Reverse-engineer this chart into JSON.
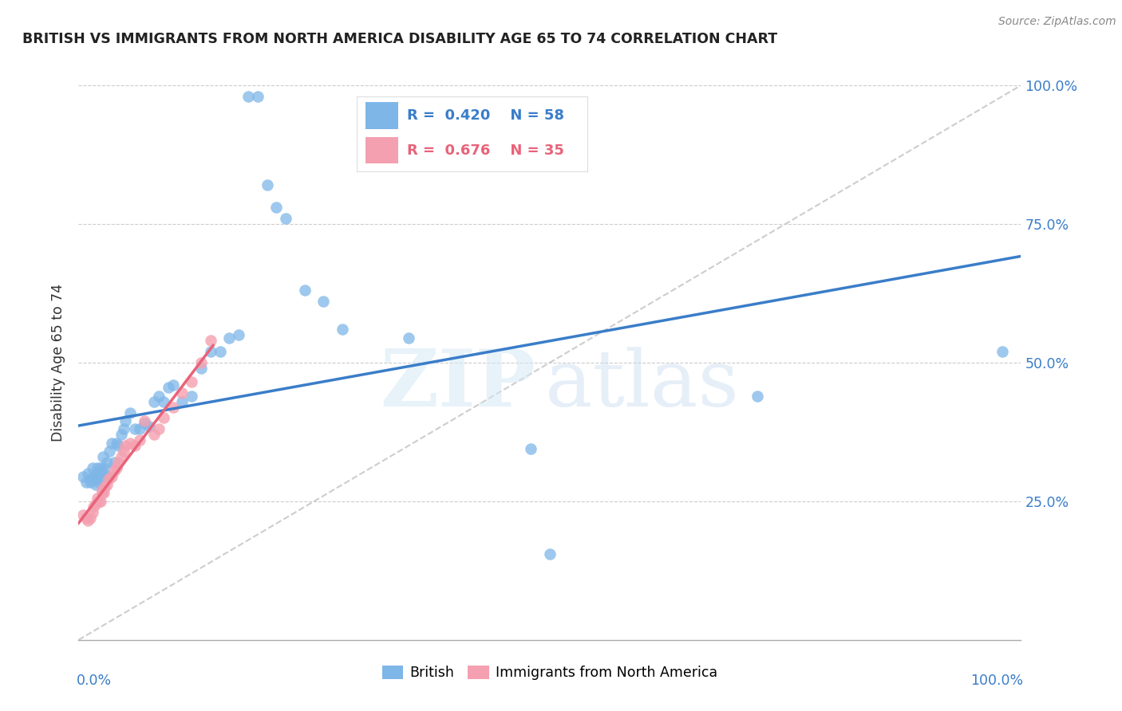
{
  "title": "BRITISH VS IMMIGRANTS FROM NORTH AMERICA DISABILITY AGE 65 TO 74 CORRELATION CHART",
  "source": "Source: ZipAtlas.com",
  "ylabel": "Disability Age 65 to 74",
  "legend_british_r": "0.420",
  "legend_british_n": "58",
  "legend_immigrants_r": "0.676",
  "legend_immigrants_n": "35",
  "british_color": "#7EB6E8",
  "immigrant_color": "#F4A0B0",
  "british_line_color": "#3A7DC9",
  "immigrant_line_color": "#E8637A",
  "diagonal_color": "#C8C8C8",
  "british_x": [
    0.005,
    0.008,
    0.01,
    0.012,
    0.013,
    0.015,
    0.015,
    0.018,
    0.018,
    0.02,
    0.02,
    0.022,
    0.022,
    0.023,
    0.025,
    0.025,
    0.026,
    0.028,
    0.03,
    0.032,
    0.033,
    0.035,
    0.038,
    0.04,
    0.042,
    0.045,
    0.048,
    0.05,
    0.055,
    0.06,
    0.065,
    0.07,
    0.075,
    0.08,
    0.085,
    0.09,
    0.095,
    0.1,
    0.11,
    0.12,
    0.13,
    0.14,
    0.15,
    0.16,
    0.17,
    0.18,
    0.19,
    0.2,
    0.21,
    0.22,
    0.24,
    0.26,
    0.28,
    0.35,
    0.48,
    0.5,
    0.72,
    0.98
  ],
  "british_y": [
    0.295,
    0.285,
    0.3,
    0.285,
    0.29,
    0.295,
    0.31,
    0.28,
    0.29,
    0.3,
    0.31,
    0.285,
    0.3,
    0.31,
    0.29,
    0.305,
    0.33,
    0.31,
    0.32,
    0.295,
    0.34,
    0.355,
    0.32,
    0.355,
    0.35,
    0.37,
    0.38,
    0.395,
    0.41,
    0.38,
    0.38,
    0.39,
    0.385,
    0.43,
    0.44,
    0.43,
    0.455,
    0.46,
    0.43,
    0.44,
    0.49,
    0.52,
    0.52,
    0.545,
    0.55,
    0.98,
    0.98,
    0.82,
    0.78,
    0.76,
    0.63,
    0.61,
    0.56,
    0.545,
    0.345,
    0.155,
    0.44,
    0.52
  ],
  "immigrant_x": [
    0.005,
    0.008,
    0.01,
    0.012,
    0.015,
    0.016,
    0.018,
    0.02,
    0.022,
    0.023,
    0.025,
    0.025,
    0.027,
    0.028,
    0.03,
    0.032,
    0.035,
    0.038,
    0.04,
    0.042,
    0.045,
    0.048,
    0.05,
    0.055,
    0.06,
    0.065,
    0.07,
    0.08,
    0.085,
    0.09,
    0.1,
    0.11,
    0.12,
    0.13,
    0.14
  ],
  "immigrant_y": [
    0.225,
    0.22,
    0.215,
    0.22,
    0.23,
    0.24,
    0.245,
    0.255,
    0.25,
    0.25,
    0.265,
    0.27,
    0.265,
    0.275,
    0.28,
    0.29,
    0.295,
    0.305,
    0.31,
    0.32,
    0.33,
    0.34,
    0.35,
    0.355,
    0.35,
    0.36,
    0.395,
    0.37,
    0.38,
    0.4,
    0.42,
    0.445,
    0.465,
    0.5,
    0.54
  ],
  "xlim": [
    0.0,
    1.0
  ],
  "ylim": [
    0.0,
    1.0
  ]
}
